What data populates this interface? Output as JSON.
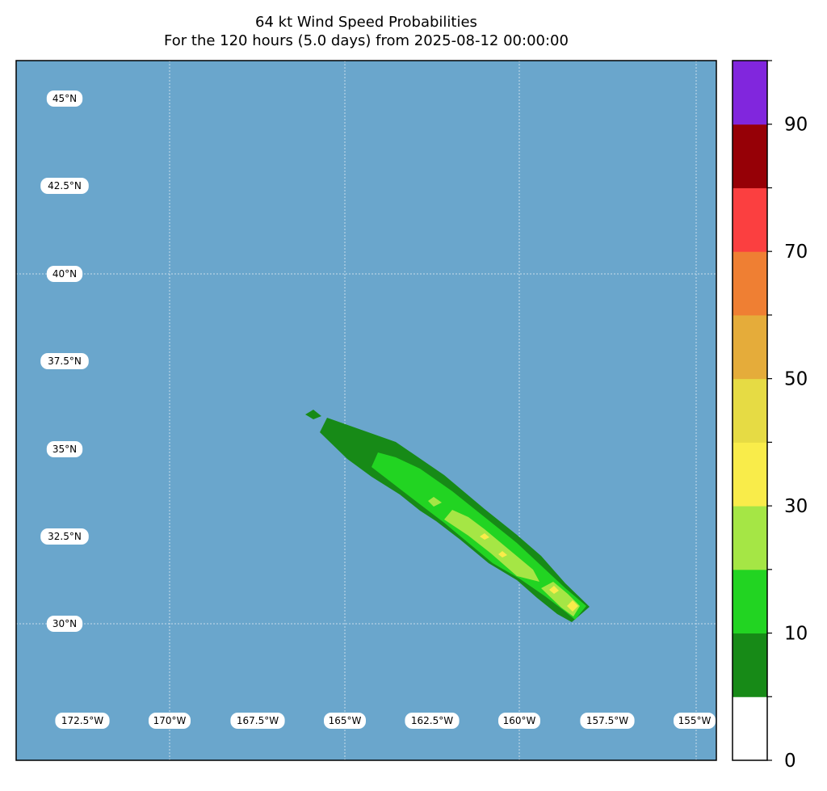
{
  "title": {
    "line1": "64 kt Wind Speed Probabilities",
    "line2": "For the 120 hours (5.0 days) from 2025-08-12 00:00:00"
  },
  "map": {
    "ocean_color": "#6aa6cc",
    "lat_labels": [
      "45°N",
      "42.5°N",
      "40°N",
      "37.5°N",
      "35°N",
      "32.5°N",
      "30°N"
    ],
    "lon_labels": [
      "172.5°W",
      "170°W",
      "167.5°W",
      "165°W",
      "162.5°W",
      "160°W",
      "157.5°W",
      "155°W"
    ],
    "probability_bands": [
      {
        "range": "0-10",
        "color": "#178a17"
      },
      {
        "range": "10-20",
        "color": "#22d422"
      },
      {
        "range": "20-30",
        "color": "#a5e645"
      },
      {
        "range": "30-40",
        "color": "#f9ec4a"
      }
    ]
  },
  "colorbar": {
    "colors": [
      "#ffffff",
      "#178a17",
      "#22d422",
      "#a5e645",
      "#f9ec4a",
      "#e6db44",
      "#e5ac3a",
      "#ef7f33",
      "#fb3f40",
      "#960006",
      "#8126dd"
    ],
    "tick_labels": [
      "0",
      "10",
      "30",
      "50",
      "70",
      "90"
    ]
  }
}
